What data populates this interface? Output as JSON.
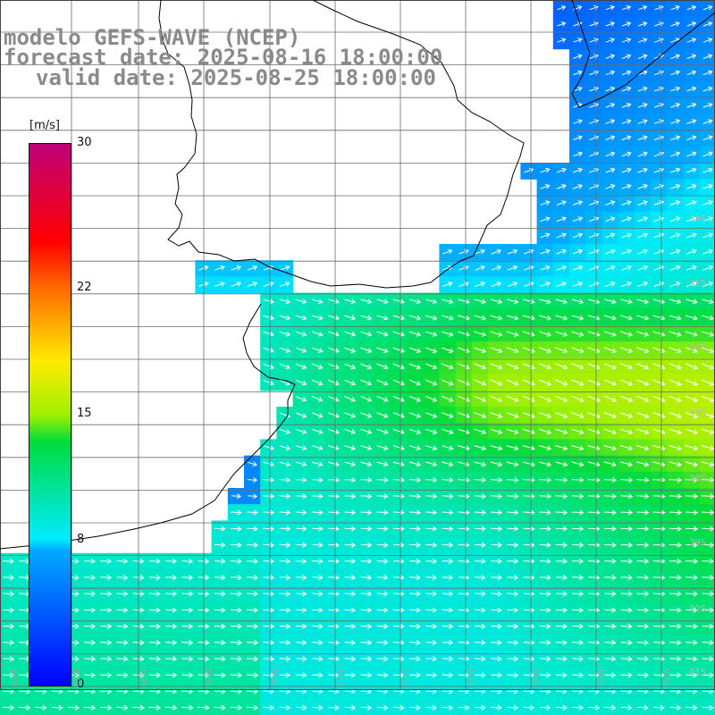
{
  "title": {
    "line1": "modelo GEFS-WAVE (NCEP)",
    "line2": "forecast date: 2025-08-16 18:00:00",
    "line3": "valid date: 2025-08-25 18:00:00"
  },
  "legend": {
    "unit": "[m/s]",
    "min": 0,
    "max": 30,
    "ticks": [
      "30",
      "22",
      "15",
      "8",
      "0"
    ],
    "tick_values": [
      30,
      22,
      15,
      8,
      0
    ]
  },
  "lat_labels": [
    "34S",
    "35S",
    "36S",
    "37S",
    "38S",
    "39S",
    "40S",
    "41S"
  ],
  "lon_labels": [
    "62W",
    "61W",
    "60W",
    "59W",
    "58W",
    "57W",
    "56W",
    "55W",
    "54W",
    "53W",
    "52W"
  ],
  "colors": {
    "land": "#ffffff",
    "grid": "#6b6b6b",
    "coast": "#000000",
    "arrow": "#ffffff",
    "title": "#8a8a8a"
  },
  "field": "wind speed over sea, arrows show direction (mostly eastward / south-eastward)"
}
